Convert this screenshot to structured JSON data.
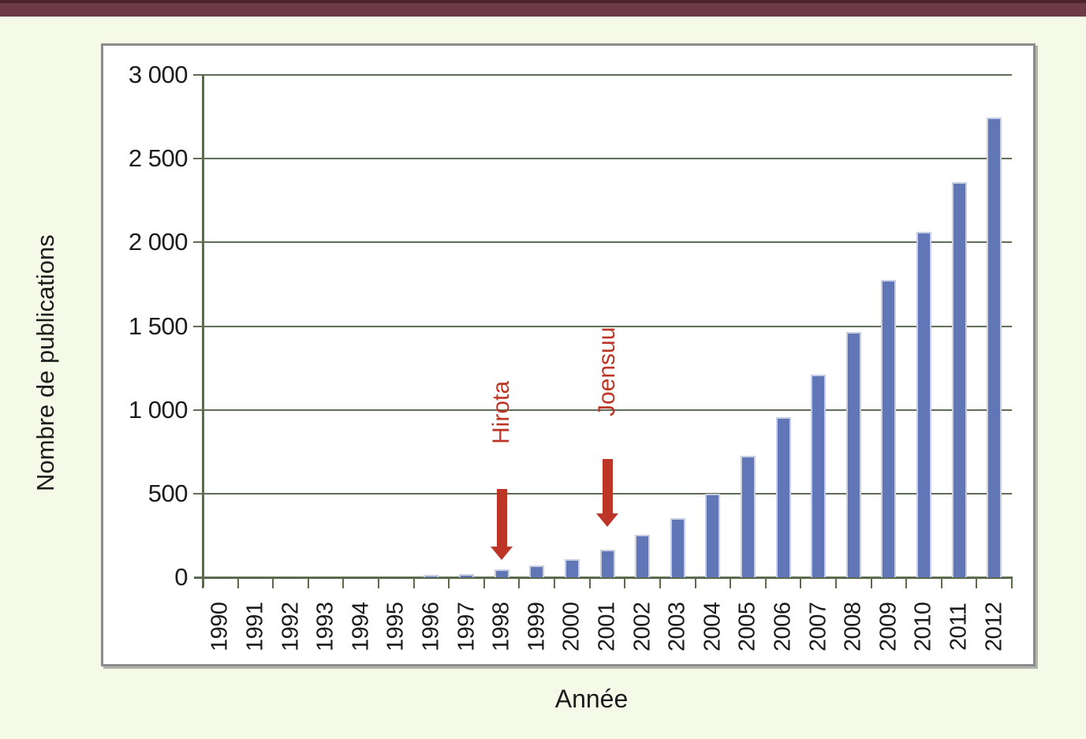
{
  "page": {
    "background_color": "#f4f9e8",
    "top_bar_color": "#6e3a45"
  },
  "chart_data": {
    "type": "bar",
    "title": "",
    "xlabel": "Année",
    "ylabel": "Nombre de publications",
    "categories": [
      "1990",
      "1991",
      "1992",
      "1993",
      "1994",
      "1995",
      "1996",
      "1997",
      "1998",
      "1999",
      "2000",
      "2001",
      "2002",
      "2003",
      "2004",
      "2005",
      "2006",
      "2007",
      "2008",
      "2009",
      "2010",
      "2011",
      "2012"
    ],
    "values": [
      0,
      0,
      0,
      0,
      0,
      0,
      12,
      20,
      45,
      70,
      110,
      165,
      255,
      355,
      500,
      725,
      955,
      1210,
      1465,
      1775,
      2065,
      2360,
      2745
    ],
    "ylim": [
      0,
      3000
    ],
    "ytick_interval": 500,
    "ytick_labels": [
      "0",
      "500",
      "1 000",
      "1 500",
      "2 000",
      "2 500",
      "3 000"
    ],
    "grid": "horizontal-only",
    "legend": "none",
    "bar_color": "#6076b6",
    "bar_edge_color": "#c7cde2",
    "gridline_color": "#5f6e55",
    "annotation_color": "#bd3526",
    "annotations": [
      {
        "label": "Hirota",
        "year": "1998"
      },
      {
        "label": "Joensuu",
        "year": "2001"
      }
    ]
  }
}
